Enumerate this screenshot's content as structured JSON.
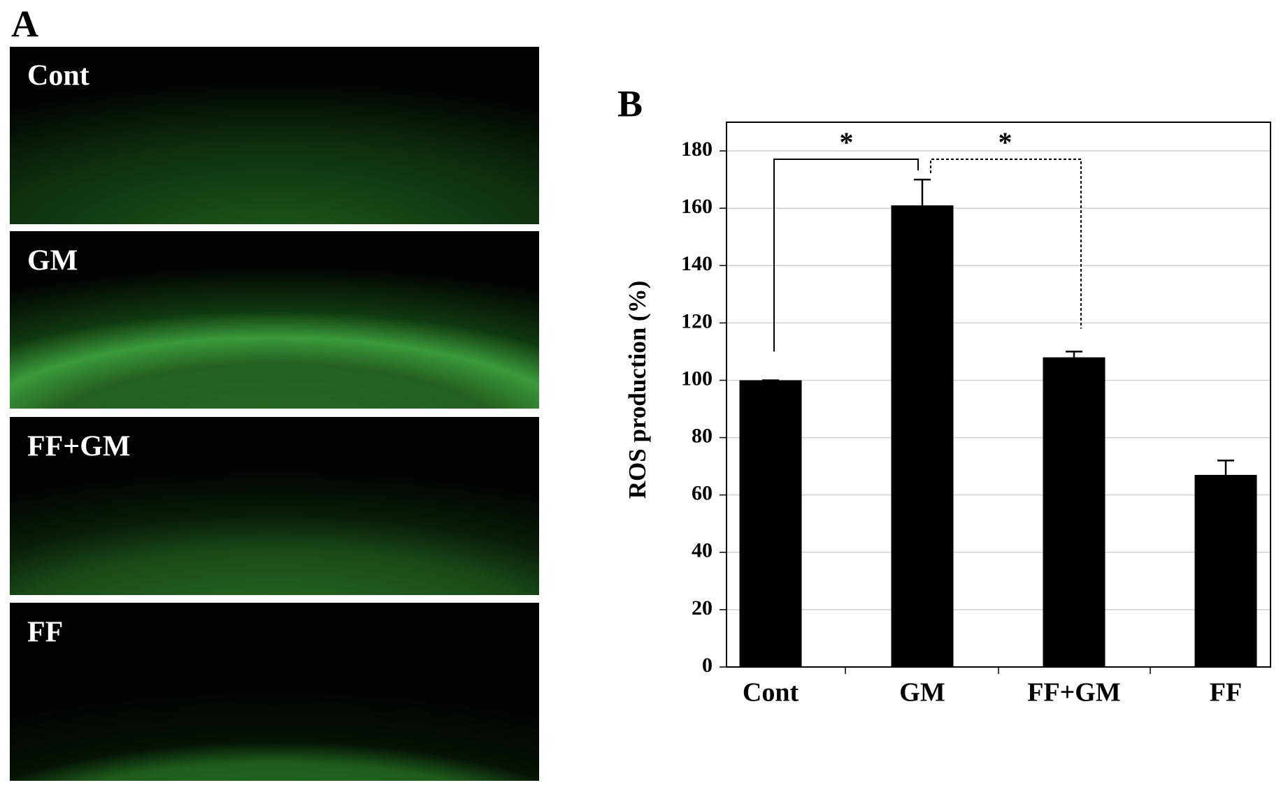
{
  "panel_a": {
    "label": "A",
    "image_labels": [
      "Cont",
      "GM",
      "FF+GM",
      "FF"
    ]
  },
  "chart_data": {
    "type": "bar",
    "panel_label": "B",
    "y_label": "ROS production (%)",
    "categories": [
      "Cont",
      "GM",
      "FF+GM",
      "FF"
    ],
    "values": [
      100,
      161,
      108,
      67
    ],
    "errors": [
      0,
      9,
      2,
      5
    ],
    "color": "#000000",
    "ylim": [
      0,
      190
    ],
    "yticks": [
      0,
      20,
      40,
      60,
      80,
      100,
      120,
      140,
      160,
      180
    ],
    "grid": true,
    "annotations": [
      "*",
      "*"
    ]
  }
}
